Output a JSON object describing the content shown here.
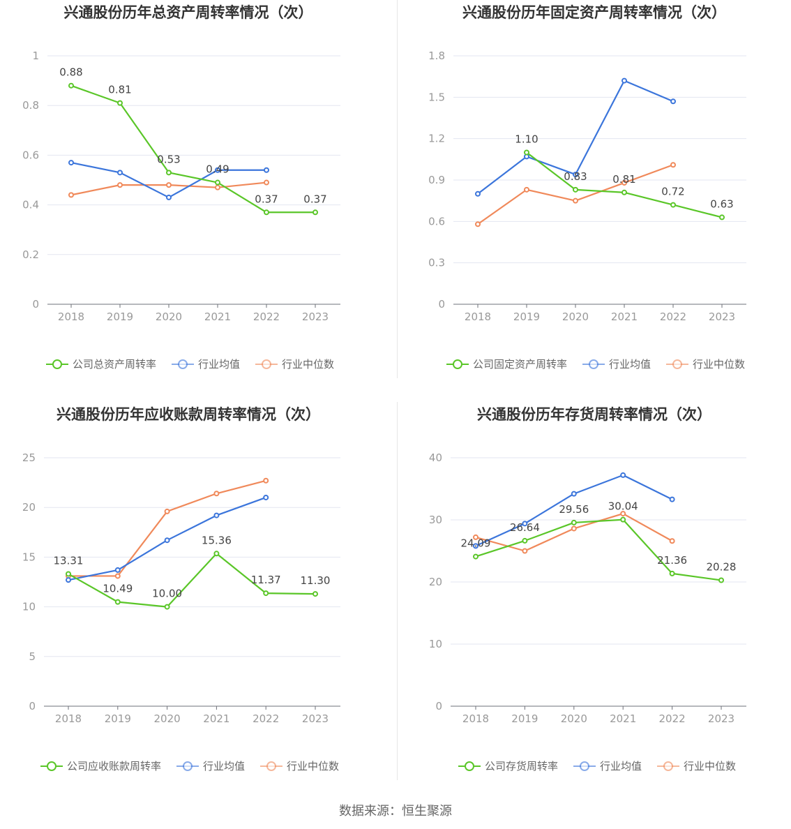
{
  "colors": {
    "company": "#5ac628",
    "industry_avg": "#3b75db",
    "industry_median": "#f0895a"
  },
  "legend_common": {
    "industry_avg": "行业均值",
    "industry_median": "行业中位数"
  },
  "source_text": "数据来源：恒生聚源",
  "chart_data": [
    {
      "type": "line",
      "title": "兴通股份历年总资产周转率情况（次）",
      "x": [
        "2018",
        "2019",
        "2020",
        "2021",
        "2022",
        "2023"
      ],
      "ylim": [
        0,
        1
      ],
      "yticks": [
        "0",
        "0.2",
        "0.4",
        "0.6",
        "0.8",
        "1"
      ],
      "ytick_values": [
        0,
        0.2,
        0.4,
        0.6,
        0.8,
        1.0
      ],
      "legend_company": "公司总资产周转率",
      "series": [
        {
          "name": "公司总资产周转率",
          "values": [
            0.88,
            0.81,
            0.53,
            0.49,
            0.37,
            0.37
          ],
          "labels": [
            "0.88",
            "0.81",
            "0.53",
            "0.49",
            "0.37",
            "0.37"
          ]
        },
        {
          "name": "行业均值",
          "values": [
            0.57,
            0.53,
            0.43,
            0.54,
            0.54,
            null
          ]
        },
        {
          "name": "行业中位数",
          "values": [
            0.44,
            0.48,
            0.48,
            0.47,
            0.49,
            null
          ]
        }
      ]
    },
    {
      "type": "line",
      "title": "兴通股份历年固定资产周转率情况（次）",
      "x": [
        "2018",
        "2019",
        "2020",
        "2021",
        "2022",
        "2023"
      ],
      "ylim": [
        0,
        1.8
      ],
      "yticks": [
        "0",
        "0.3",
        "0.6",
        "0.9",
        "1.2",
        "1.5",
        "1.8"
      ],
      "ytick_values": [
        0,
        0.3,
        0.6,
        0.9,
        1.2,
        1.5,
        1.8
      ],
      "legend_company": "公司固定资产周转率",
      "series": [
        {
          "name": "公司固定资产周转率",
          "values": [
            null,
            1.1,
            0.83,
            0.81,
            0.72,
            0.63
          ],
          "labels": [
            null,
            "1.10",
            "0.83",
            "0.81",
            "0.72",
            "0.63"
          ]
        },
        {
          "name": "行业均值",
          "values": [
            0.8,
            1.07,
            0.94,
            1.62,
            1.47,
            null
          ]
        },
        {
          "name": "行业中位数",
          "values": [
            0.58,
            0.83,
            0.75,
            0.88,
            1.01,
            null
          ]
        }
      ]
    },
    {
      "type": "line",
      "title": "兴通股份历年应收账款周转率情况（次）",
      "x": [
        "2018",
        "2019",
        "2020",
        "2021",
        "2022",
        "2023"
      ],
      "ylim": [
        0,
        25
      ],
      "yticks": [
        "0",
        "5",
        "10",
        "15",
        "20",
        "25"
      ],
      "ytick_values": [
        0,
        5,
        10,
        15,
        20,
        25
      ],
      "legend_company": "公司应收账款周转率",
      "series": [
        {
          "name": "公司应收账款周转率",
          "values": [
            13.31,
            10.49,
            10.0,
            15.36,
            11.37,
            11.3
          ],
          "labels": [
            "13.31",
            "10.49",
            "10.00",
            "15.36",
            "11.37",
            "11.30"
          ]
        },
        {
          "name": "行业均值",
          "values": [
            12.7,
            13.7,
            16.7,
            19.2,
            21.0,
            null
          ]
        },
        {
          "name": "行业中位数",
          "values": [
            13.1,
            13.1,
            19.6,
            21.4,
            22.7,
            null
          ]
        }
      ]
    },
    {
      "type": "line",
      "title": "兴通股份历年存货周转率情况（次）",
      "x": [
        "2018",
        "2019",
        "2020",
        "2021",
        "2022",
        "2023"
      ],
      "ylim": [
        0,
        40
      ],
      "yticks": [
        "0",
        "10",
        "20",
        "30",
        "40"
      ],
      "ytick_values": [
        0,
        10,
        20,
        30,
        40
      ],
      "legend_company": "公司存货周转率",
      "series": [
        {
          "name": "公司存货周转率",
          "values": [
            24.09,
            26.64,
            29.56,
            30.04,
            21.36,
            20.28
          ],
          "labels": [
            "24.09",
            "26.64",
            "29.56",
            "30.04",
            "21.36",
            "20.28"
          ]
        },
        {
          "name": "行业均值",
          "values": [
            25.8,
            29.4,
            34.2,
            37.2,
            33.3,
            null
          ]
        },
        {
          "name": "行业中位数",
          "values": [
            27.2,
            25.0,
            28.6,
            31.0,
            26.6,
            null
          ]
        }
      ]
    }
  ]
}
